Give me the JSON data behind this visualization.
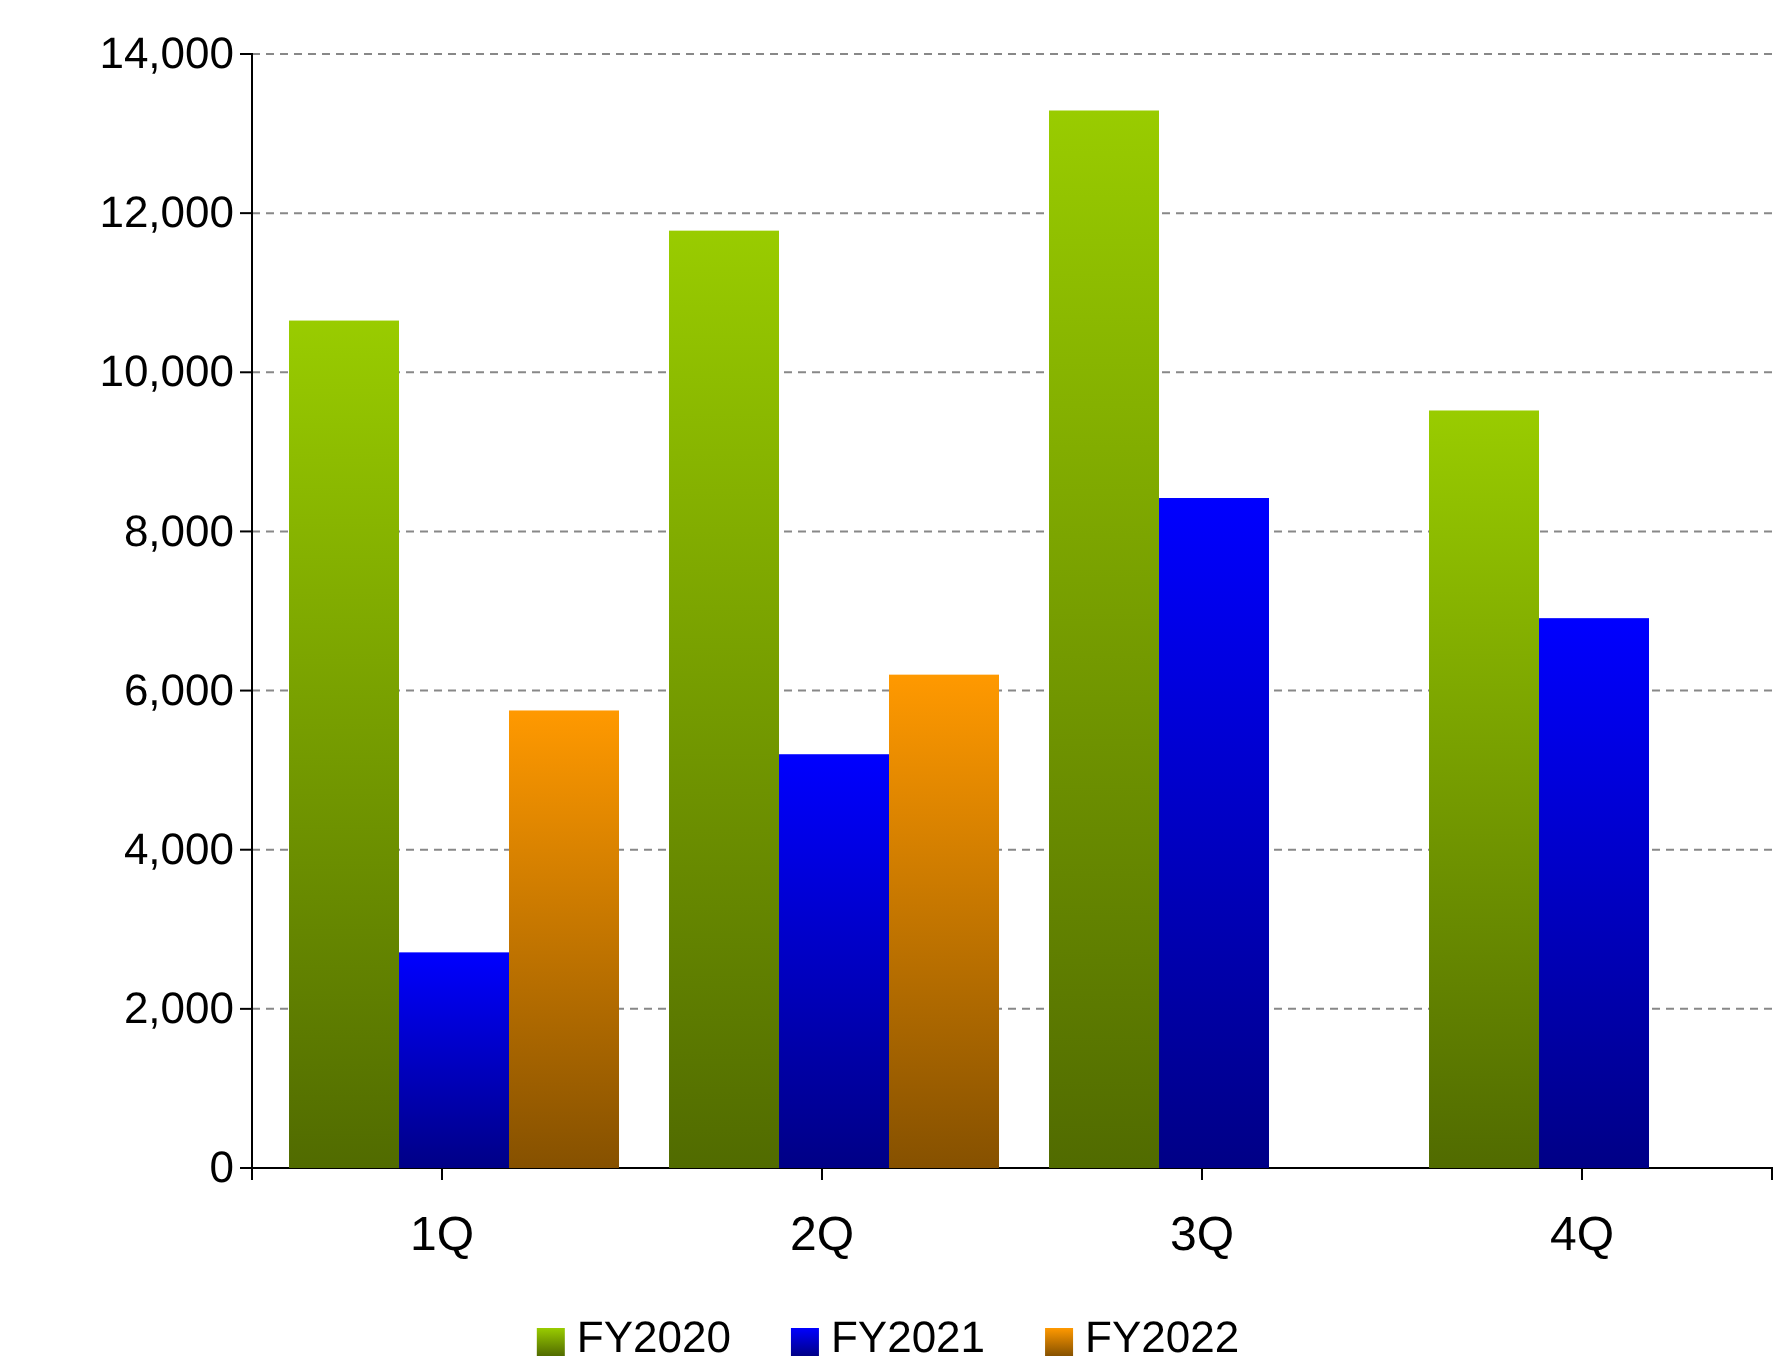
{
  "chart_data": {
    "type": "bar",
    "categories": [
      "1Q",
      "2Q",
      "3Q",
      "4Q"
    ],
    "series": [
      {
        "name": "FY2020",
        "color": "#99cc00",
        "values": [
          10650,
          11780,
          13290,
          9520
        ]
      },
      {
        "name": "FY2021",
        "color": "#0000ff",
        "values": [
          2710,
          5200,
          8420,
          6910
        ]
      },
      {
        "name": "FY2022",
        "color": "#ff9900",
        "values": [
          5750,
          6200,
          null,
          null
        ]
      }
    ],
    "ylim": [
      0,
      14000
    ],
    "yticks": [
      {
        "value": 0,
        "label": "0"
      },
      {
        "value": 2000,
        "label": "2,000"
      },
      {
        "value": 4000,
        "label": "4,000"
      },
      {
        "value": 6000,
        "label": "6,000"
      },
      {
        "value": 8000,
        "label": "8,000"
      },
      {
        "value": 10000,
        "label": "10,000"
      },
      {
        "value": 12000,
        "label": "12,000"
      },
      {
        "value": 14000,
        "label": "14,000"
      }
    ],
    "grid": "y",
    "legend": "bottom"
  }
}
